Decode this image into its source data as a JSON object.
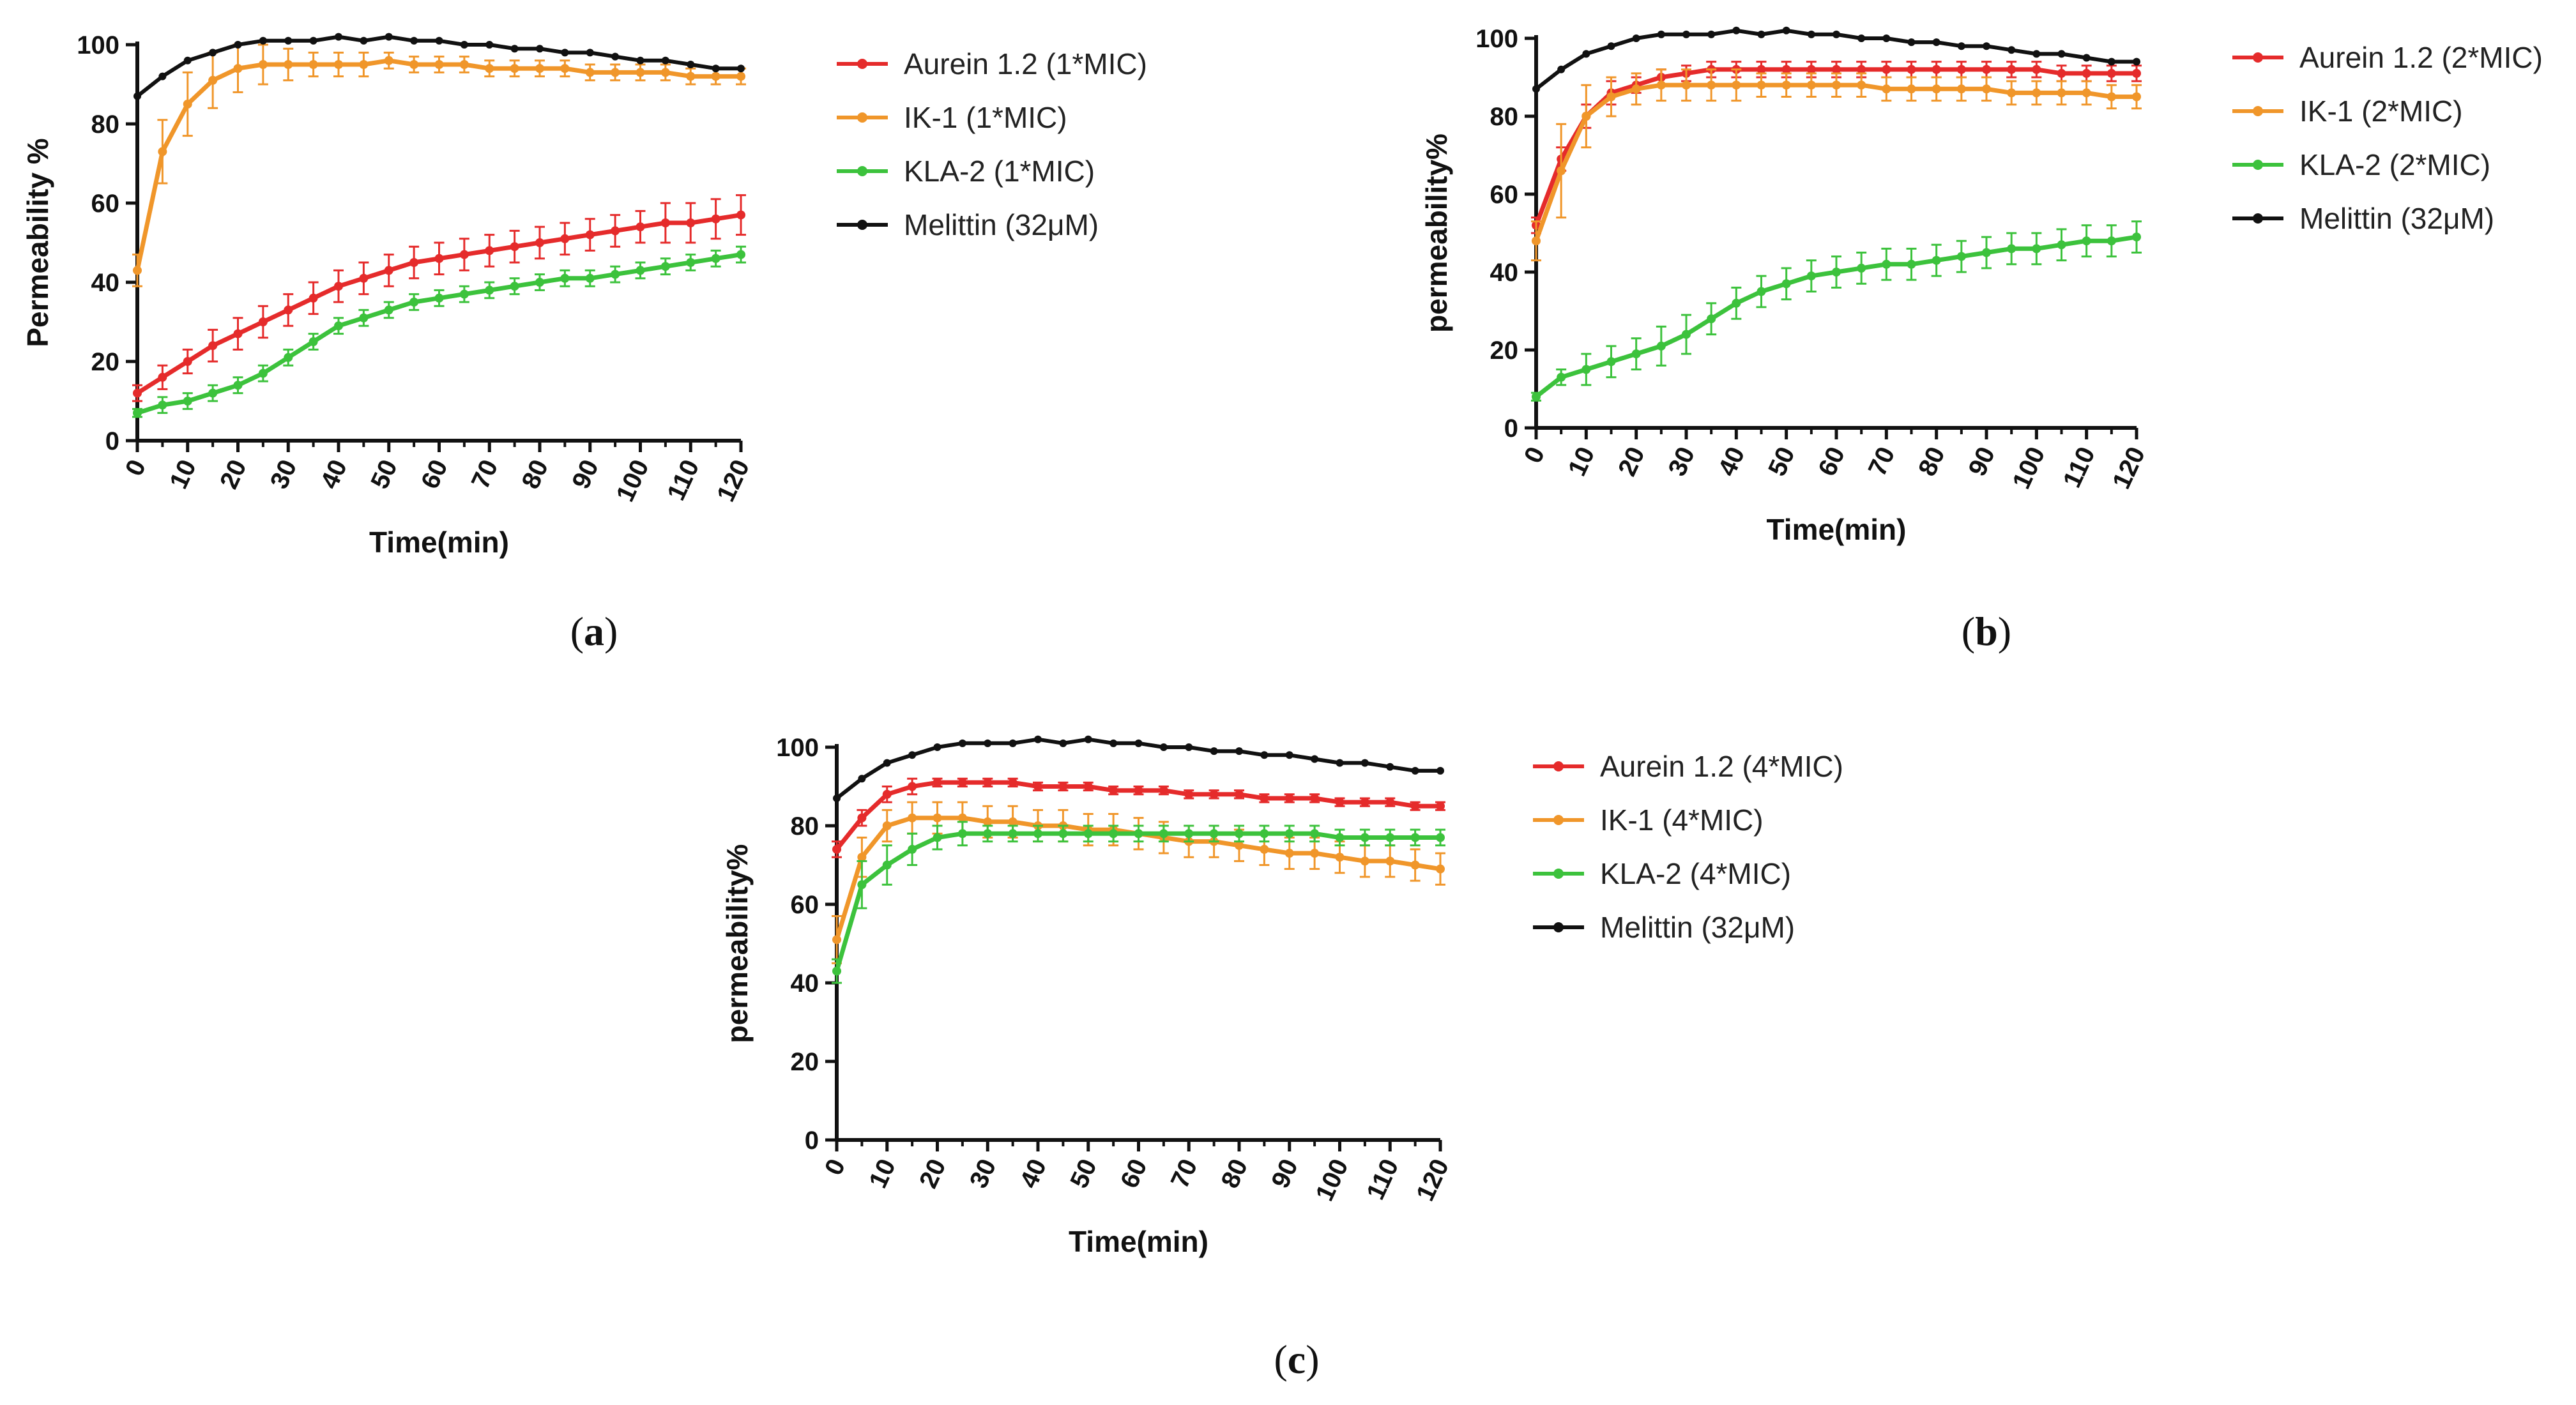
{
  "figure": {
    "description_captions": [
      "(a)",
      "(b)",
      "(c)"
    ]
  },
  "colors": {
    "aurein": "#e52b2b",
    "ik1": "#f0962a",
    "kla2": "#3cc23c",
    "melittin": "#111111"
  },
  "chart_data": [
    {
      "type": "line",
      "panel": "a",
      "caption_letter": "a",
      "xlabel": "Time(min)",
      "ylabel": "Permeability %",
      "xlim": [
        0,
        120
      ],
      "ylim": [
        0,
        100
      ],
      "xticks": [
        0,
        10,
        20,
        30,
        40,
        50,
        60,
        70,
        80,
        90,
        100,
        110,
        120
      ],
      "yticks": [
        0,
        20,
        40,
        60,
        80,
        100
      ],
      "x": [
        0,
        5,
        10,
        15,
        20,
        25,
        30,
        35,
        40,
        45,
        50,
        55,
        60,
        65,
        70,
        75,
        80,
        85,
        90,
        95,
        100,
        105,
        110,
        115,
        120
      ],
      "legend_position": "right",
      "series": [
        {
          "name": "Aurein 1.2 (1*MIC)",
          "color_key": "aurein",
          "values": [
            12,
            16,
            20,
            24,
            27,
            30,
            33,
            36,
            39,
            41,
            43,
            45,
            46,
            47,
            48,
            49,
            50,
            51,
            52,
            53,
            54,
            55,
            55,
            56,
            57
          ],
          "errors": [
            2,
            3,
            3,
            4,
            4,
            4,
            4,
            4,
            4,
            4,
            4,
            4,
            4,
            4,
            4,
            4,
            4,
            4,
            4,
            4,
            4,
            5,
            5,
            5,
            5
          ]
        },
        {
          "name": "IK-1 (1*MIC)",
          "color_key": "ik1",
          "values": [
            43,
            73,
            85,
            91,
            94,
            95,
            95,
            95,
            95,
            95,
            96,
            95,
            95,
            95,
            94,
            94,
            94,
            94,
            93,
            93,
            93,
            93,
            92,
            92,
            92
          ],
          "errors": [
            4,
            8,
            8,
            7,
            6,
            5,
            4,
            3,
            3,
            3,
            2,
            2,
            2,
            2,
            2,
            2,
            2,
            2,
            2,
            2,
            2,
            2,
            2,
            2,
            2
          ]
        },
        {
          "name": "KLA-2 (1*MIC)",
          "color_key": "kla2",
          "values": [
            7,
            9,
            10,
            12,
            14,
            17,
            21,
            25,
            29,
            31,
            33,
            35,
            36,
            37,
            38,
            39,
            40,
            41,
            41,
            42,
            43,
            44,
            45,
            46,
            47
          ],
          "errors": [
            1,
            2,
            2,
            2,
            2,
            2,
            2,
            2,
            2,
            2,
            2,
            2,
            2,
            2,
            2,
            2,
            2,
            2,
            2,
            2,
            2,
            2,
            2,
            2,
            2
          ]
        },
        {
          "name": "Melittin (32μM)",
          "color_key": "melittin",
          "values": [
            87,
            92,
            96,
            98,
            100,
            101,
            101,
            101,
            102,
            101,
            102,
            101,
            101,
            100,
            100,
            99,
            99,
            98,
            98,
            97,
            96,
            96,
            95,
            94,
            94
          ],
          "errors": [
            0,
            0,
            0,
            0,
            0,
            0,
            0,
            0,
            0,
            0,
            0,
            0,
            0,
            0,
            0,
            0,
            0,
            0,
            0,
            0,
            0,
            0,
            0,
            0,
            0
          ]
        }
      ]
    },
    {
      "type": "line",
      "panel": "b",
      "caption_letter": "b",
      "xlabel": "Time(min)",
      "ylabel": "permeability%",
      "xlim": [
        0,
        120
      ],
      "ylim": [
        0,
        100
      ],
      "xticks": [
        0,
        10,
        20,
        30,
        40,
        50,
        60,
        70,
        80,
        90,
        100,
        110,
        120
      ],
      "yticks": [
        0,
        20,
        40,
        60,
        80,
        100
      ],
      "x": [
        0,
        5,
        10,
        15,
        20,
        25,
        30,
        35,
        40,
        45,
        50,
        55,
        60,
        65,
        70,
        75,
        80,
        85,
        90,
        95,
        100,
        105,
        110,
        115,
        120
      ],
      "legend_position": "right",
      "series": [
        {
          "name": "Aurein 1.2 (2*MIC)",
          "color_key": "aurein",
          "values": [
            52,
            69,
            80,
            86,
            88,
            90,
            91,
            92,
            92,
            92,
            92,
            92,
            92,
            92,
            92,
            92,
            92,
            92,
            92,
            92,
            92,
            91,
            91,
            91,
            91
          ],
          "errors": [
            2,
            3,
            3,
            3,
            2,
            2,
            2,
            2,
            2,
            2,
            2,
            2,
            2,
            2,
            2,
            2,
            2,
            2,
            2,
            2,
            2,
            2,
            2,
            2,
            2
          ]
        },
        {
          "name": "IK-1 (2*MIC)",
          "color_key": "ik1",
          "values": [
            48,
            66,
            80,
            85,
            87,
            88,
            88,
            88,
            88,
            88,
            88,
            88,
            88,
            88,
            87,
            87,
            87,
            87,
            87,
            86,
            86,
            86,
            86,
            85,
            85
          ],
          "errors": [
            5,
            12,
            8,
            5,
            4,
            4,
            4,
            4,
            4,
            3,
            3,
            3,
            3,
            3,
            3,
            3,
            3,
            3,
            3,
            3,
            3,
            3,
            3,
            3,
            3
          ]
        },
        {
          "name": "KLA-2 (2*MIC)",
          "color_key": "kla2",
          "values": [
            8,
            13,
            15,
            17,
            19,
            21,
            24,
            28,
            32,
            35,
            37,
            39,
            40,
            41,
            42,
            42,
            43,
            44,
            45,
            46,
            46,
            47,
            48,
            48,
            49
          ],
          "errors": [
            1,
            2,
            4,
            4,
            4,
            5,
            5,
            4,
            4,
            4,
            4,
            4,
            4,
            4,
            4,
            4,
            4,
            4,
            4,
            4,
            4,
            4,
            4,
            4,
            4
          ]
        },
        {
          "name": "Melittin (32μM)",
          "color_key": "melittin",
          "values": [
            87,
            92,
            96,
            98,
            100,
            101,
            101,
            101,
            102,
            101,
            102,
            101,
            101,
            100,
            100,
            99,
            99,
            98,
            98,
            97,
            96,
            96,
            95,
            94,
            94
          ],
          "errors": [
            0,
            0,
            0,
            0,
            0,
            0,
            0,
            0,
            0,
            0,
            0,
            0,
            0,
            0,
            0,
            0,
            0,
            0,
            0,
            0,
            0,
            0,
            0,
            0,
            0
          ]
        }
      ]
    },
    {
      "type": "line",
      "panel": "c",
      "caption_letter": "c",
      "xlabel": "Time(min)",
      "ylabel": "permeability%",
      "xlim": [
        0,
        120
      ],
      "ylim": [
        0,
        100
      ],
      "xticks": [
        0,
        10,
        20,
        30,
        40,
        50,
        60,
        70,
        80,
        90,
        100,
        110,
        120
      ],
      "yticks": [
        0,
        20,
        40,
        60,
        80,
        100
      ],
      "x": [
        0,
        5,
        10,
        15,
        20,
        25,
        30,
        35,
        40,
        45,
        50,
        55,
        60,
        65,
        70,
        75,
        80,
        85,
        90,
        95,
        100,
        105,
        110,
        115,
        120
      ],
      "legend_position": "right",
      "series": [
        {
          "name": "Aurein 1.2 (4*MIC)",
          "color_key": "aurein",
          "values": [
            74,
            82,
            88,
            90,
            91,
            91,
            91,
            91,
            90,
            90,
            90,
            89,
            89,
            89,
            88,
            88,
            88,
            87,
            87,
            87,
            86,
            86,
            86,
            85,
            85
          ],
          "errors": [
            2,
            2,
            2,
            2,
            1,
            1,
            1,
            1,
            1,
            1,
            1,
            1,
            1,
            1,
            1,
            1,
            1,
            1,
            1,
            1,
            1,
            1,
            1,
            1,
            1
          ]
        },
        {
          "name": "IK-1 (4*MIC)",
          "color_key": "ik1",
          "values": [
            51,
            72,
            80,
            82,
            82,
            82,
            81,
            81,
            80,
            80,
            79,
            79,
            78,
            77,
            76,
            76,
            75,
            74,
            73,
            73,
            72,
            71,
            71,
            70,
            69
          ],
          "errors": [
            6,
            5,
            4,
            4,
            4,
            4,
            4,
            4,
            4,
            4,
            4,
            4,
            4,
            4,
            4,
            4,
            4,
            4,
            4,
            4,
            4,
            4,
            4,
            4,
            4
          ]
        },
        {
          "name": "KLA-2 (4*MIC)",
          "color_key": "kla2",
          "values": [
            43,
            65,
            70,
            74,
            77,
            78,
            78,
            78,
            78,
            78,
            78,
            78,
            78,
            78,
            78,
            78,
            78,
            78,
            78,
            78,
            77,
            77,
            77,
            77,
            77
          ],
          "errors": [
            3,
            6,
            5,
            4,
            3,
            3,
            2,
            2,
            2,
            2,
            2,
            2,
            2,
            2,
            2,
            2,
            2,
            2,
            2,
            2,
            2,
            2,
            2,
            2,
            2
          ]
        },
        {
          "name": "Melittin (32μM)",
          "color_key": "melittin",
          "values": [
            87,
            92,
            96,
            98,
            100,
            101,
            101,
            101,
            102,
            101,
            102,
            101,
            101,
            100,
            100,
            99,
            99,
            98,
            98,
            97,
            96,
            96,
            95,
            94,
            94
          ],
          "errors": [
            0,
            0,
            0,
            0,
            0,
            0,
            0,
            0,
            0,
            0,
            0,
            0,
            0,
            0,
            0,
            0,
            0,
            0,
            0,
            0,
            0,
            0,
            0,
            0,
            0
          ]
        }
      ]
    }
  ]
}
